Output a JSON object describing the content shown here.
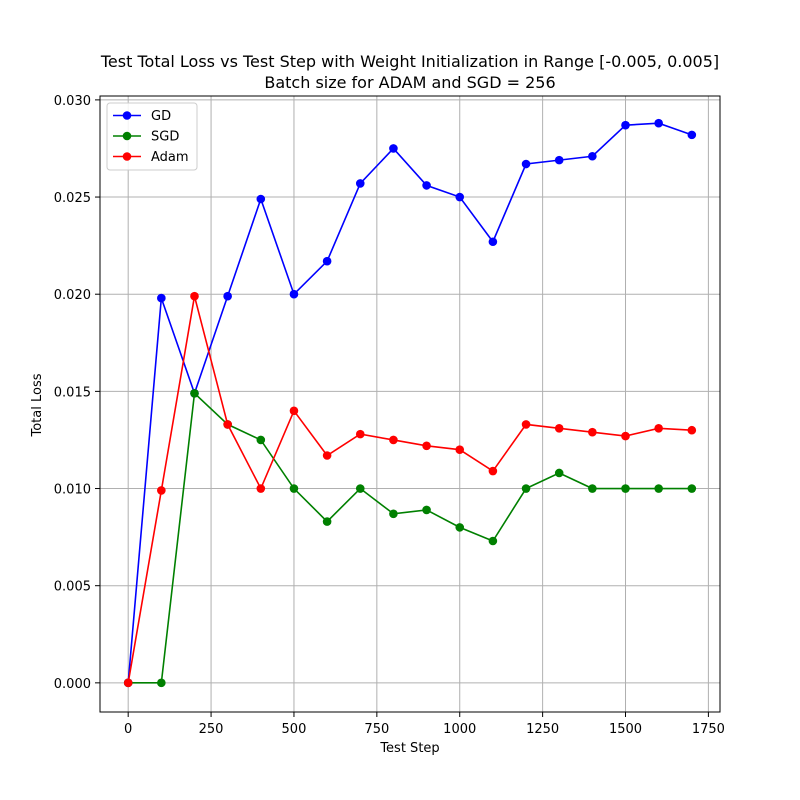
{
  "chart_data": {
    "type": "line",
    "title": "Test Total Loss vs Test Step with Weight Initialization in Range [-0.005, 0.005]",
    "subtitle": "Batch size for ADAM and SGD = 256",
    "xlabel": "Test Step",
    "ylabel": "Total Loss",
    "xlim": [
      -85,
      1785
    ],
    "ylim": [
      -0.0015,
      0.0302
    ],
    "xticks": [
      0,
      250,
      500,
      750,
      1000,
      1250,
      1500,
      1750
    ],
    "xtick_labels": [
      "0",
      "250",
      "500",
      "750",
      "1000",
      "1250",
      "1500",
      "1750"
    ],
    "yticks": [
      0.0,
      0.005,
      0.01,
      0.015,
      0.02,
      0.025,
      0.03
    ],
    "ytick_labels": [
      "0.000",
      "0.005",
      "0.010",
      "0.015",
      "0.020",
      "0.025",
      "0.030"
    ],
    "grid": true,
    "legend_position": "top-left",
    "x": [
      0,
      100,
      200,
      300,
      400,
      500,
      600,
      700,
      800,
      900,
      1000,
      1100,
      1200,
      1300,
      1400,
      1500,
      1600,
      1700
    ],
    "series": [
      {
        "name": "GD",
        "color": "#0000ff",
        "values": [
          0.0,
          0.0198,
          0.0149,
          0.0199,
          0.0249,
          0.02,
          0.0217,
          0.0257,
          0.0275,
          0.0256,
          0.025,
          0.0227,
          0.0267,
          0.0269,
          0.0271,
          0.0287,
          0.0288,
          0.0282
        ]
      },
      {
        "name": "SGD",
        "color": "#008000",
        "values": [
          0.0,
          0.0,
          0.0149,
          0.0133,
          0.0125,
          0.01,
          0.0083,
          0.01,
          0.0087,
          0.0089,
          0.008,
          0.0073,
          0.01,
          0.0108,
          0.01,
          0.01,
          0.01,
          0.01
        ]
      },
      {
        "name": "Adam",
        "color": "#ff0000",
        "values": [
          0.0,
          0.0099,
          0.0199,
          0.0133,
          0.01,
          0.014,
          0.0117,
          0.0128,
          0.0125,
          0.0122,
          0.012,
          0.0109,
          0.0133,
          0.0131,
          0.0129,
          0.0127,
          0.0131,
          0.013
        ]
      }
    ]
  }
}
